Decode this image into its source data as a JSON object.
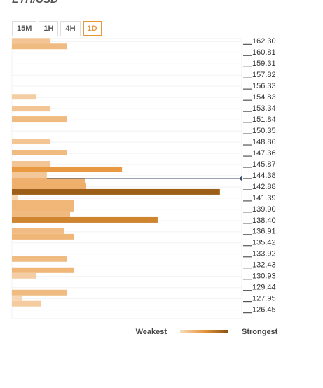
{
  "tabs": [
    "15M",
    "1H",
    "4H",
    "1D"
  ],
  "active_tab": 3,
  "chart_data": {
    "type": "bar",
    "orientation": "horizontal",
    "title": "ETH/USD",
    "x": [
      162.39,
      161.65,
      154.92,
      153.34,
      151.94,
      148.95,
      147.46,
      145.96,
      145.22,
      144.47,
      143.72,
      142.98,
      142.23,
      141.48,
      140.73,
      139.99,
      139.24,
      138.49,
      137.0,
      136.25,
      133.27,
      131.77,
      131.02,
      128.78,
      128.04,
      127.29
    ],
    "values": [
      16.8,
      23.8,
      10.7,
      16.8,
      23.8,
      16.8,
      23.8,
      16.8,
      47.9,
      15.2,
      31.7,
      32.3,
      90.5,
      2.7,
      27.1,
      27.1,
      25.3,
      63.4,
      22.6,
      27.1,
      23.8,
      27.1,
      10.7,
      23.8,
      4.3,
      12.5
    ],
    "xlim": [
      0,
      100
    ],
    "ylim": [
      125.3,
      162.7
    ],
    "yticks": [
      {
        "value": 162.3,
        "label": "162.30"
      },
      160.81,
      159.31,
      157.82,
      156.33,
      154.83,
      153.34,
      151.84,
      150.35,
      148.86,
      147.36,
      145.87,
      144.38,
      142.88,
      141.39,
      {
        "value": 139.9,
        "label": "139.90"
      },
      {
        "value": 138.4,
        "label": "138.40"
      },
      136.91,
      135.42,
      133.92,
      132.43,
      130.93,
      129.44,
      127.95,
      126.45
    ],
    "current_price": 144.0,
    "current_color": "#3a4a6b",
    "color_scale": [
      "#f8dcc0",
      "#e8963c",
      "#8c5210"
    ],
    "legend": {
      "low": "Weakest",
      "high": "Strongest"
    },
    "grid": true
  }
}
